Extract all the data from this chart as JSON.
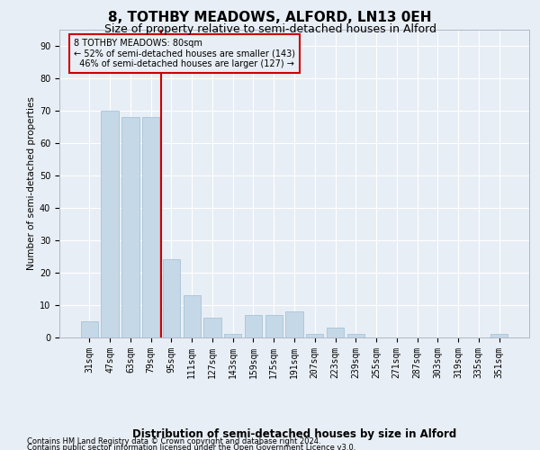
{
  "title": "8, TOTHBY MEADOWS, ALFORD, LN13 0EH",
  "subtitle": "Size of property relative to semi-detached houses in Alford",
  "xlabel_bottom": "Distribution of semi-detached houses by size in Alford",
  "ylabel": "Number of semi-detached properties",
  "footnote1": "Contains HM Land Registry data © Crown copyright and database right 2024.",
  "footnote2": "Contains public sector information licensed under the Open Government Licence v3.0.",
  "categories": [
    "31sqm",
    "47sqm",
    "63sqm",
    "79sqm",
    "95sqm",
    "111sqm",
    "127sqm",
    "143sqm",
    "159sqm",
    "175sqm",
    "191sqm",
    "207sqm",
    "223sqm",
    "239sqm",
    "255sqm",
    "271sqm",
    "287sqm",
    "303sqm",
    "319sqm",
    "335sqm",
    "351sqm"
  ],
  "values": [
    5,
    70,
    68,
    68,
    24,
    13,
    6,
    1,
    7,
    7,
    8,
    1,
    3,
    1,
    0,
    0,
    0,
    0,
    0,
    0,
    1
  ],
  "bar_color": "#c5d8e8",
  "bar_edge_color": "#a8c4d8",
  "property_line_x": 3.5,
  "property_label": "8 TOTHBY MEADOWS: 80sqm",
  "pct_smaller": 52,
  "count_smaller": 143,
  "pct_larger": 46,
  "count_larger": 127,
  "annotation_box_color": "#cc0000",
  "ylim": [
    0,
    95
  ],
  "yticks": [
    0,
    10,
    20,
    30,
    40,
    50,
    60,
    70,
    80,
    90
  ],
  "background_color": "#e8eef5",
  "grid_color": "#ffffff",
  "title_fontsize": 11,
  "subtitle_fontsize": 9,
  "axis_fontsize": 7.5,
  "tick_fontsize": 7,
  "footnote_fontsize": 6
}
